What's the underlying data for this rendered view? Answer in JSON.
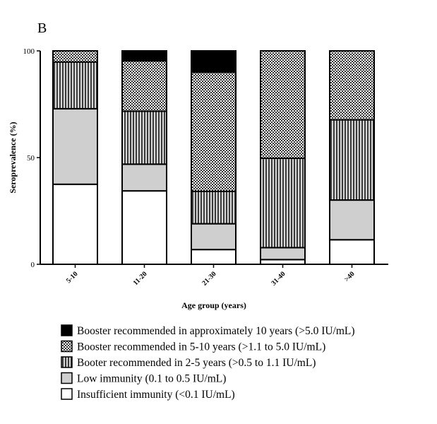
{
  "panel_label": "B",
  "chart_data": {
    "type": "bar",
    "stacked": true,
    "xlabel": "Age group (years)",
    "ylabel": "Seroprevalence (%)",
    "ylim": [
      0,
      100
    ],
    "yticks": [
      0,
      50,
      100
    ],
    "grid": false,
    "legend_position": "bottom",
    "categories": [
      "5-10",
      "11-20",
      "21-30",
      "31-40",
      ">40"
    ],
    "series": [
      {
        "name": "Insufficient immunity (<0.1 IU/mL)",
        "pattern": "white",
        "values": [
          37.5,
          34.4,
          6.9,
          2.2,
          11.5
        ]
      },
      {
        "name": "Low immunity (0.1 to 0.5 IU/mL)",
        "pattern": "lightgray",
        "values": [
          35.4,
          12.5,
          12.1,
          5.6,
          18.6
        ]
      },
      {
        "name": "Booter recommended in 2-5 years (>0.5 to 1.1 IU/mL)",
        "pattern": "vertical-stripes",
        "values": [
          21.9,
          24.8,
          15.2,
          41.9,
          37.6
        ]
      },
      {
        "name": "Booster recommended in 5-10 years (>1.1 to 5.0 IU/mL)",
        "pattern": "checker",
        "values": [
          5.2,
          23.6,
          55.8,
          50.3,
          32.3
        ]
      },
      {
        "name": "Booster recommended in approximately 10 years (>5.0 IU/mL)",
        "pattern": "black",
        "values": [
          0,
          4.7,
          10.0,
          0,
          0
        ]
      }
    ],
    "legend_order": [
      4,
      3,
      2,
      1,
      0
    ]
  }
}
